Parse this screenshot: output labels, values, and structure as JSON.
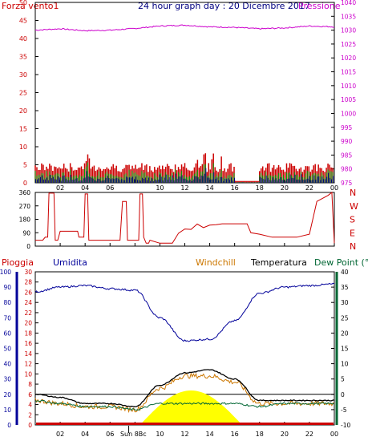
{
  "header": {
    "left_label": "Forza vento1",
    "title": "24 hour graph day : 20 Dicembre 2017",
    "right_label": "Pressione"
  },
  "colors": {
    "wind": "#cc0000",
    "gust": "#cc0000",
    "wind_green": "#009900",
    "wind_navy": "#000080",
    "pressure": "#cc00cc",
    "direction": "#cc0000",
    "humidity": "#000099",
    "temperature": "#000000",
    "windchill": "#cc7700",
    "dewpoint": "#006633",
    "rain": "#cc0000",
    "sun": "#ffff00",
    "axis_left": "#cc0000",
    "axis_right": "#cc00cc",
    "axis_humidity": "#000099",
    "axis_right_bottom": "#006633",
    "grid": "#000000"
  },
  "x_axis": {
    "tick_labels": [
      "02",
      "04",
      "06",
      "08",
      "10",
      "12",
      "14",
      "16",
      "18",
      "20",
      "22",
      "00"
    ],
    "sun_label": "Sun 8Bc"
  },
  "panel_top": {
    "left_ticks": [
      "0",
      "5",
      "10",
      "15",
      "20",
      "25",
      "30",
      "35",
      "40",
      "45",
      "50"
    ],
    "right_ticks": [
      "975",
      "980",
      "985",
      "990",
      "995",
      "1000",
      "1005",
      "1010",
      "1015",
      "1020",
      "1025",
      "1030",
      "1035",
      "1040"
    ]
  },
  "panel_mid": {
    "left_ticks": [
      "0",
      "90",
      "180",
      "270",
      "360"
    ],
    "right_letters": [
      "N",
      "W",
      "S",
      "E",
      "N"
    ]
  },
  "panel_bottom": {
    "legend": {
      "rain": "Pioggia",
      "humidity": "Umidita",
      "windchill": "Windchill",
      "temperature": "Temperatura",
      "dewpoint": "Dew Point (°C"
    },
    "hum_ticks": [
      "0",
      "10",
      "20",
      "30",
      "40",
      "50",
      "60",
      "70",
      "80",
      "90",
      "100"
    ],
    "rain_ticks": [
      "0",
      "2",
      "4",
      "6",
      "8",
      "10",
      "12",
      "14",
      "16",
      "18",
      "20",
      "22",
      "24",
      "26",
      "28",
      "30"
    ],
    "temp_ticks": [
      "-10",
      "-5",
      "0",
      "5",
      "10",
      "15",
      "20",
      "25",
      "30",
      "35",
      "40"
    ]
  },
  "chart_data": [
    {
      "type": "line",
      "title": "24 hour graph day : 20 Dicembre 2017",
      "x_hours": [
        0,
        2,
        4,
        6,
        8,
        10,
        12,
        14,
        16,
        18,
        20,
        22,
        24
      ],
      "series": [
        {
          "name": "Forza vento1",
          "values": [
            3,
            4,
            4,
            3,
            4,
            3,
            3,
            4,
            3,
            2,
            3,
            3,
            3
          ]
        },
        {
          "name": "Pressione",
          "values": [
            1030,
            1030.5,
            1029.8,
            1030,
            1030.6,
            1031.5,
            1031.8,
            1031.2,
            1031,
            1030.5,
            1030.8,
            1031.5,
            1031.2
          ]
        }
      ],
      "ylim": [
        0,
        50
      ],
      "y2lim": [
        975,
        1040
      ]
    },
    {
      "type": "line",
      "x_hours": [
        0,
        2,
        4,
        6,
        8,
        10,
        12,
        14,
        16,
        18,
        20,
        22,
        24
      ],
      "series": [
        {
          "name": "Direction",
          "values": [
            40,
            100,
            100,
            40,
            40,
            20,
            60,
            150,
            150,
            90,
            50,
            80,
            360
          ]
        }
      ],
      "ylim": [
        0,
        360
      ]
    },
    {
      "type": "line",
      "x_hours": [
        0,
        2,
        4,
        6,
        8,
        10,
        12,
        14,
        16,
        18,
        20,
        22,
        24
      ],
      "series": [
        {
          "name": "Umidita",
          "values": [
            87,
            90,
            91,
            89,
            88,
            70,
            55,
            56,
            68,
            86,
            90,
            91,
            92
          ]
        },
        {
          "name": "Temperatura",
          "values": [
            0,
            -1,
            -3,
            -3,
            -4,
            3,
            7,
            8,
            5,
            -2,
            -2,
            -2,
            -2
          ]
        },
        {
          "name": "Windchill",
          "values": [
            -2,
            -3,
            -4,
            -4,
            -5,
            2,
            6,
            6,
            4,
            -3,
            -3,
            -3,
            -3
          ]
        },
        {
          "name": "Dew Point (°C",
          "values": [
            -2,
            -3,
            -4,
            -4,
            -5,
            -3,
            -3,
            -3,
            -3,
            -4,
            -3,
            -3,
            -3
          ]
        },
        {
          "name": "Pioggia",
          "values": [
            0,
            0,
            0,
            0,
            0,
            0,
            0,
            0,
            0,
            0,
            0,
            0,
            0
          ]
        }
      ],
      "ylim": [
        0,
        100
      ],
      "y2lim": [
        -10,
        40
      ]
    }
  ]
}
